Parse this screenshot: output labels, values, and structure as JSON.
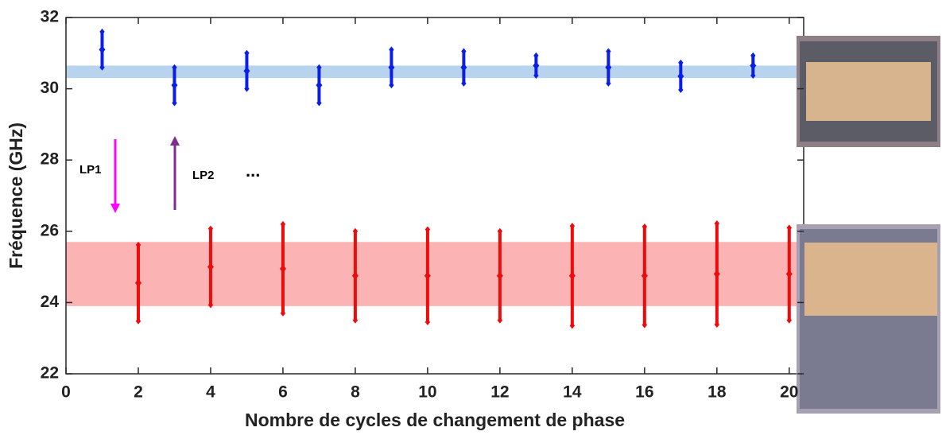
{
  "chart_data": {
    "type": "errorbar",
    "xlabel": "Nombre de cycles de changement de phase",
    "ylabel": "Fréquence (GHz)",
    "xlim": [
      0,
      20.4
    ],
    "xticks": [
      0,
      2,
      4,
      6,
      8,
      10,
      12,
      14,
      16,
      18,
      20
    ],
    "ylim": [
      22,
      32
    ],
    "yticks": [
      22,
      24,
      26,
      28,
      30,
      32
    ],
    "series": [
      {
        "color": "#0a1ee6",
        "x": [
          1,
          3,
          5,
          7,
          9,
          11,
          13,
          15,
          17,
          19
        ],
        "values": [
          31.1,
          30.1,
          30.5,
          30.1,
          30.6,
          30.6,
          30.65,
          30.6,
          30.35,
          30.65
        ],
        "errors": [
          0.5,
          0.5,
          0.5,
          0.5,
          0.5,
          0.45,
          0.28,
          0.45,
          0.38,
          0.28
        ]
      },
      {
        "color": "#f00a0a",
        "x": [
          2,
          4,
          6,
          8,
          10,
          12,
          14,
          16,
          18,
          20
        ],
        "values": [
          24.55,
          25.0,
          24.95,
          24.75,
          24.75,
          24.75,
          24.75,
          24.75,
          24.8,
          24.8
        ],
        "errors": [
          1.07,
          1.07,
          1.25,
          1.25,
          1.3,
          1.25,
          1.4,
          1.38,
          1.42,
          1.3
        ]
      }
    ],
    "bands": [
      {
        "range": [
          30.3,
          30.65
        ],
        "color": "#b7d3ee"
      },
      {
        "range": [
          23.9,
          25.7
        ],
        "color": "#fbb3b3"
      }
    ],
    "annotations": [
      "LP1",
      "LP2",
      "..."
    ]
  }
}
